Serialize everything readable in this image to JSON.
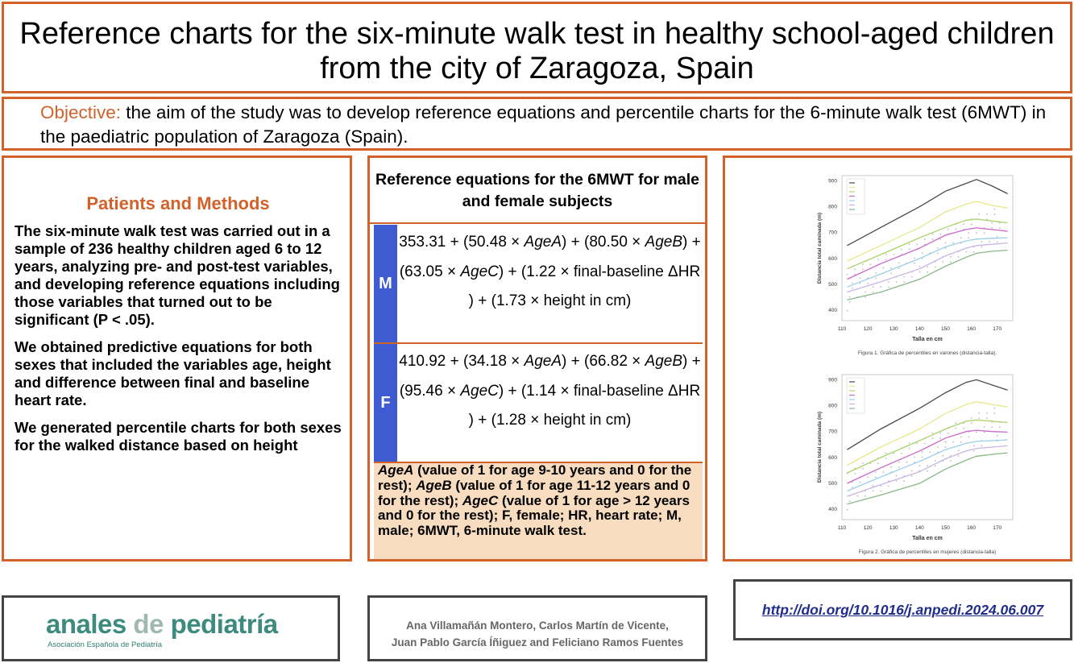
{
  "title": "Reference charts for the six-minute walk test in healthy school-aged children from the city of Zaragoza, Spain",
  "objective": {
    "label": "Objective:",
    "text": " the aim of the study was to develop reference equations and percentile charts for the 6-minute walk test (6MWT) in the paediatric population of Zaragoza (Spain)."
  },
  "methods": {
    "heading": "Patients and Methods",
    "paragraphs": [
      "The six-minute walk test was carried out in a sample of 236 healthy children aged 6 to 12 years, analyzing pre- and post-test variables, and developing reference equations including those variables that turned out to be significant (P < .05).",
      "We obtained predictive equations for both sexes that included the  variables age, height and difference between final and baseline heart rate.",
      "We generated percentile charts for both sexes for the walked distance based on height"
    ]
  },
  "equations": {
    "heading": "Reference equations for the 6MWT for male and female subjects",
    "rows": [
      {
        "sex": "M",
        "equation": "353.31 + (50.48 × AgeA) + (80.50 × AgeB) + (63.05 × AgeC) + (1.22 × final-baseline ΔHR ) + (1.73 × height in cm)"
      },
      {
        "sex": "F",
        "equation": "410.92 + (34.18 × AgeA) + (66.82 × AgeB) + (95.46 × AgeC) + (1.14 × final-baseline ΔHR ) + (1.28 × height in cm)"
      }
    ],
    "notes": "AgeA (value of 1 for age 9-10 years and 0 for the rest); AgeB (value of 1 for age 11-12 years and 0 for the rest); AgeC (value of 1 for age > 12 years and 0 for the rest); F, female; HR, heart rate; M, male; 6MWT, 6-minute walk test."
  },
  "figures": [
    {
      "caption": "Figura 1. Gráfica de percentiles en varones (distancia-talla).",
      "chart_data": {
        "type": "line",
        "xlabel": "Talla en cm",
        "ylabel": "Distancia total caminada (m)",
        "xticks": [
          "110",
          "120",
          "130",
          "140",
          "150",
          "160",
          "170"
        ],
        "yticks": [
          "400",
          "500",
          "600",
          "700",
          "800",
          "900"
        ],
        "xlim": [
          110,
          176
        ],
        "ylim": [
          360,
          920
        ],
        "colors": [
          "#4a4a4a",
          "#e8e88a",
          "#a8d46a",
          "#cc66cc",
          "#9ad0e8",
          "#c8b4e8",
          "#88b888"
        ],
        "series": [
          {
            "x": [
              112,
              125,
              140,
              150,
              158,
              162,
              168,
              174
            ],
            "values": [
              650,
              720,
              800,
              860,
              890,
              905,
              880,
              850
            ]
          },
          {
            "x": [
              112,
              125,
              140,
              150,
              158,
              162,
              168,
              174
            ],
            "values": [
              590,
              650,
              720,
              780,
              810,
              820,
              805,
              795
            ]
          },
          {
            "x": [
              112,
              125,
              140,
              150,
              158,
              162,
              168,
              174
            ],
            "values": [
              560,
              615,
              680,
              720,
              748,
              752,
              745,
              738
            ]
          },
          {
            "x": [
              112,
              125,
              140,
              150,
              158,
              162,
              168,
              174
            ],
            "values": [
              520,
              580,
              640,
              690,
              712,
              718,
              712,
              705
            ]
          },
          {
            "x": [
              112,
              125,
              140,
              150,
              158,
              162,
              168,
              174
            ],
            "values": [
              490,
              540,
              600,
              645,
              668,
              675,
              678,
              680
            ]
          },
          {
            "x": [
              112,
              125,
              140,
              150,
              158,
              162,
              168,
              174
            ],
            "values": [
              470,
              510,
              560,
              610,
              640,
              650,
              655,
              660
            ]
          },
          {
            "x": [
              112,
              125,
              140,
              150,
              158,
              162,
              168,
              174
            ],
            "values": [
              440,
              470,
              520,
              570,
              605,
              620,
              628,
              632
            ]
          }
        ]
      }
    },
    {
      "caption": "Figura 2. Gráfica de percentiles en mujeres (distancia-talla)",
      "chart_data": {
        "type": "line",
        "xlabel": "Talla en cm",
        "ylabel": "Distancia total caminada (m)",
        "xticks": [
          "110",
          "120",
          "130",
          "140",
          "150",
          "160",
          "170"
        ],
        "yticks": [
          "400",
          "500",
          "600",
          "700",
          "800",
          "900"
        ],
        "xlim": [
          110,
          176
        ],
        "ylim": [
          360,
          920
        ],
        "colors": [
          "#4a4a4a",
          "#e8e88a",
          "#a8d46a",
          "#cc66cc",
          "#9ad0e8",
          "#c8b4e8",
          "#88b888"
        ],
        "series": [
          {
            "x": [
              112,
              125,
              140,
              150,
              158,
              162,
              168,
              174
            ],
            "values": [
              630,
              710,
              790,
              850,
              890,
              900,
              880,
              860
            ]
          },
          {
            "x": [
              112,
              125,
              140,
              150,
              158,
              162,
              168,
              174
            ],
            "values": [
              570,
              640,
              710,
              770,
              805,
              815,
              805,
              795
            ]
          },
          {
            "x": [
              112,
              125,
              140,
              150,
              158,
              162,
              168,
              174
            ],
            "values": [
              540,
              600,
              665,
              710,
              740,
              745,
              740,
              735
            ]
          },
          {
            "x": [
              112,
              125,
              140,
              150,
              158,
              162,
              168,
              174
            ],
            "values": [
              500,
              560,
              625,
              675,
              700,
              705,
              700,
              698
            ]
          },
          {
            "x": [
              112,
              125,
              140,
              150,
              158,
              162,
              168,
              174
            ],
            "values": [
              470,
              525,
              585,
              630,
              655,
              662,
              665,
              668
            ]
          },
          {
            "x": [
              112,
              125,
              140,
              150,
              158,
              162,
              168,
              174
            ],
            "values": [
              450,
              495,
              545,
              595,
              625,
              635,
              640,
              645
            ]
          },
          {
            "x": [
              112,
              125,
              140,
              150,
              158,
              162,
              168,
              174
            ],
            "values": [
              420,
              455,
              500,
              555,
              590,
              605,
              612,
              618
            ]
          }
        ]
      }
    }
  ],
  "footer": {
    "logo_main_a": "anales ",
    "logo_main_de": "de",
    "logo_main_b": " pediatría",
    "logo_sub": "Asociación Española de Pediatría",
    "authors_line1": "Ana Villamañán Montero, Carlos Martín de Vicente,",
    "authors_line2": "Juan Pablo García Íñiguez and Feliciano Ramos Fuentes",
    "doi": "http://doi.org/10.1016/j.anpedi.2024.06.007"
  }
}
